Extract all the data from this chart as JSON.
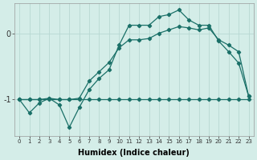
{
  "xlabel": "Humidex (Indice chaleur)",
  "bg_color": "#d4ede8",
  "grid_color": "#b8d8d2",
  "line_color": "#1a7068",
  "xlim": [
    -0.5,
    23.5
  ],
  "ylim": [
    -1.55,
    0.45
  ],
  "yticks": [
    -1,
    0
  ],
  "xticks": [
    0,
    1,
    2,
    3,
    4,
    5,
    6,
    7,
    8,
    9,
    10,
    11,
    12,
    13,
    14,
    15,
    16,
    17,
    18,
    19,
    20,
    21,
    22,
    23
  ],
  "s1_x": [
    0,
    1,
    2,
    3,
    4,
    5,
    6,
    7,
    8,
    9,
    10,
    11,
    12,
    13,
    14,
    15,
    16,
    17,
    18,
    19,
    20,
    21,
    22,
    23
  ],
  "s1_y": [
    -1.0,
    -1.2,
    -1.05,
    -0.98,
    -1.08,
    -1.42,
    -1.12,
    -0.85,
    -0.68,
    -0.55,
    -0.18,
    0.12,
    0.12,
    0.12,
    0.25,
    0.28,
    0.35,
    0.2,
    0.12,
    0.12,
    -0.12,
    -0.28,
    -0.45,
    -0.95
  ],
  "s2_x": [
    0,
    1,
    2,
    3,
    4,
    5,
    6,
    7,
    8,
    9,
    10,
    11,
    12,
    13,
    14,
    15,
    16,
    17,
    18,
    19,
    20,
    21,
    22,
    23
  ],
  "s2_y": [
    -1.0,
    -1.0,
    -1.0,
    -0.98,
    -1.0,
    -1.0,
    -0.98,
    -0.72,
    -0.58,
    -0.44,
    -0.22,
    -0.1,
    -0.1,
    -0.08,
    0.0,
    0.05,
    0.1,
    0.08,
    0.05,
    0.08,
    -0.1,
    -0.18,
    -0.28,
    -0.95
  ],
  "s3_x": [
    0,
    1,
    2,
    3,
    4,
    5,
    6,
    7,
    8,
    9,
    10,
    11,
    12,
    13,
    14,
    15,
    16,
    17,
    18,
    19,
    20,
    21,
    22,
    23
  ],
  "s3_y": [
    -1.0,
    -1.0,
    -1.0,
    -1.0,
    -1.0,
    -1.0,
    -1.0,
    -1.0,
    -1.0,
    -1.0,
    -1.0,
    -1.0,
    -1.0,
    -1.0,
    -1.0,
    -1.0,
    -1.0,
    -1.0,
    -1.0,
    -1.0,
    -1.0,
    -1.0,
    -1.0,
    -1.0
  ]
}
